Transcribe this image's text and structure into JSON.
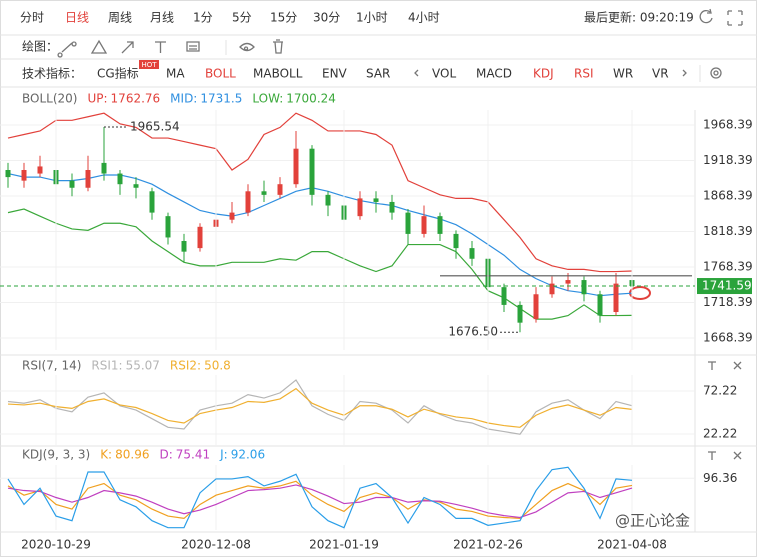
{
  "toolbar": {
    "periods": [
      "分时",
      "日线",
      "周线",
      "月线",
      "1分",
      "5分",
      "15分",
      "30分",
      "1小时",
      "4小时"
    ],
    "active_period": "日线",
    "last_update": "最后更新: 09:20:19",
    "draw_label": "绘图：",
    "indicator_label": "技术指标：",
    "indicators": [
      "CG指标",
      "MA",
      "BOLL",
      "MABOLL",
      "ENV",
      "SAR",
      "VOL",
      "MACD",
      "KDJ",
      "RSI",
      "WR",
      "VR"
    ],
    "active_indicators": [
      "BOLL",
      "KDJ",
      "RSI"
    ],
    "hot_badge": "HOT",
    "active_color": "#e2413b"
  },
  "watermark": "@正心论金",
  "chart_data": [
    {
      "type": "candlestick",
      "title": "BOLL(20)",
      "open": [
        1905,
        1890,
        1900,
        1905,
        1890,
        1880,
        1915,
        1900,
        1885,
        1875,
        1840,
        1805,
        1795,
        1825,
        1835,
        1845,
        1875,
        1870,
        1885,
        1935,
        1870,
        1855,
        1840,
        1865,
        1860,
        1845,
        1815,
        1840,
        1815,
        1795,
        1780,
        1740,
        1715,
        1695,
        1730,
        1745,
        1750,
        1730,
        1705,
        1750
      ],
      "high": [
        1915,
        1915,
        1925,
        1910,
        1900,
        1925,
        1965.54,
        1905,
        1895,
        1880,
        1845,
        1815,
        1830,
        1850,
        1860,
        1885,
        1890,
        1895,
        1960,
        1940,
        1875,
        1860,
        1875,
        1875,
        1870,
        1850,
        1855,
        1845,
        1820,
        1805,
        1785,
        1745,
        1720,
        1740,
        1755,
        1760,
        1755,
        1735,
        1760,
        1765
      ],
      "low": [
        1880,
        1880,
        1895,
        1875,
        1868,
        1875,
        1890,
        1870,
        1865,
        1835,
        1800,
        1775,
        1790,
        1820,
        1830,
        1840,
        1860,
        1865,
        1880,
        1855,
        1840,
        1815,
        1835,
        1845,
        1835,
        1800,
        1810,
        1805,
        1780,
        1770,
        1730,
        1705,
        1676.5,
        1690,
        1725,
        1735,
        1720,
        1690,
        1700,
        1735
      ],
      "close": [
        1895,
        1905,
        1910,
        1885,
        1880,
        1905,
        1900,
        1885,
        1880,
        1845,
        1810,
        1790,
        1825,
        1835,
        1845,
        1875,
        1870,
        1885,
        1935,
        1870,
        1855,
        1835,
        1865,
        1860,
        1845,
        1815,
        1840,
        1815,
        1795,
        1780,
        1740,
        1715,
        1690,
        1730,
        1745,
        1750,
        1730,
        1700,
        1745,
        1741.59
      ],
      "up_color": "#e2413b",
      "down_color": "#2aa33b",
      "series": [
        {
          "name": "UP:",
          "color": "#e2413b",
          "values": [
            1950,
            1955,
            1960,
            1975,
            1975,
            1980,
            1985,
            1970,
            1965,
            1950,
            1950,
            1945,
            1940,
            1935,
            1905,
            1920,
            1955,
            1965,
            1985,
            1975,
            1960,
            1960,
            1960,
            1955,
            1940,
            1890,
            1880,
            1870,
            1865,
            1865,
            1860,
            1835,
            1810,
            1780,
            1770,
            1765,
            1765,
            1762,
            1762,
            1762.76
          ]
        },
        {
          "name": "MID:",
          "color": "#2f8fe0",
          "values": [
            1900,
            1895,
            1895,
            1890,
            1890,
            1893,
            1898,
            1898,
            1893,
            1885,
            1872,
            1860,
            1848,
            1843,
            1840,
            1845,
            1855,
            1865,
            1875,
            1880,
            1875,
            1868,
            1862,
            1858,
            1855,
            1848,
            1842,
            1836,
            1828,
            1815,
            1800,
            1785,
            1765,
            1752,
            1742,
            1735,
            1732,
            1728,
            1730,
            1731.5
          ]
        },
        {
          "name": "LOW:",
          "color": "#3aa83a",
          "values": [
            1845,
            1850,
            1840,
            1830,
            1822,
            1820,
            1830,
            1830,
            1825,
            1805,
            1790,
            1775,
            1770,
            1770,
            1775,
            1775,
            1775,
            1780,
            1778,
            1790,
            1790,
            1780,
            1770,
            1762,
            1770,
            1800,
            1800,
            1800,
            1790,
            1765,
            1735,
            1725,
            1710,
            1695,
            1695,
            1700,
            1715,
            1700,
            1700,
            1700.24
          ]
        }
      ],
      "high_label": "1965.54",
      "low_label": "1676.50",
      "trendline": 1756,
      "ylim": [
        1651.5,
        1989.5
      ],
      "yticks": [
        1968.39,
        1918.39,
        1868.39,
        1818.39,
        1768.39,
        1718.39,
        1668.39
      ],
      "grid": true
    },
    {
      "type": "line",
      "title": "RSI(7, 14)",
      "series": [
        {
          "name": "RSI1:",
          "color": "#b5b5b5",
          "values": [
            60,
            58,
            62,
            52,
            48,
            65,
            70,
            55,
            50,
            40,
            30,
            28,
            50,
            55,
            58,
            68,
            64,
            70,
            85,
            55,
            45,
            38,
            60,
            58,
            50,
            35,
            55,
            45,
            38,
            35,
            28,
            25,
            22,
            48,
            58,
            62,
            50,
            40,
            60,
            55.07
          ]
        },
        {
          "name": "RSI2:",
          "color": "#f0b030",
          "values": [
            57,
            56,
            58,
            54,
            52,
            60,
            63,
            56,
            53,
            46,
            38,
            35,
            46,
            50,
            53,
            60,
            59,
            63,
            75,
            58,
            50,
            44,
            55,
            55,
            51,
            42,
            51,
            46,
            42,
            40,
            35,
            32,
            30,
            44,
            52,
            56,
            50,
            44,
            53,
            50.8
          ]
        }
      ],
      "ylim": [
        9.4,
        90.8
      ],
      "yticks": [
        72.22,
        22.22
      ],
      "grid": true
    },
    {
      "type": "line",
      "title": "KDJ(9, 3, 3)",
      "series": [
        {
          "name": "K:",
          "color": "#f0a020",
          "values": [
            80,
            60,
            70,
            40,
            30,
            75,
            85,
            60,
            50,
            30,
            15,
            10,
            40,
            60,
            70,
            80,
            75,
            80,
            90,
            60,
            40,
            25,
            55,
            65,
            55,
            30,
            50,
            45,
            30,
            25,
            15,
            12,
            10,
            40,
            70,
            85,
            70,
            40,
            75,
            80.96
          ]
        },
        {
          "name": "D:",
          "color": "#c040c0",
          "values": [
            75,
            70,
            68,
            55,
            45,
            55,
            70,
            65,
            58,
            45,
            30,
            20,
            28,
            40,
            55,
            70,
            72,
            75,
            82,
            72,
            58,
            42,
            45,
            55,
            55,
            45,
            48,
            47,
            40,
            32,
            22,
            16,
            12,
            24,
            45,
            65,
            68,
            55,
            65,
            75.41
          ]
        },
        {
          "name": "J:",
          "color": "#2a9ee8",
          "values": [
            95,
            40,
            75,
            15,
            5,
            110,
            110,
            50,
            35,
            5,
            -10,
            -10,
            65,
            95,
            95,
            100,
            80,
            90,
            105,
            35,
            5,
            -10,
            75,
            85,
            55,
            0,
            55,
            40,
            10,
            10,
            -5,
            0,
            5,
            70,
            115,
            120,
            75,
            10,
            95,
            92.06
          ]
        }
      ],
      "categories": [
        null,
        null,
        null,
        "2020-10-29",
        null,
        null,
        null,
        null,
        null,
        null,
        null,
        null,
        null,
        "2020-12-08",
        null,
        null,
        null,
        null,
        null,
        null,
        null,
        "2021-01-19",
        null,
        null,
        null,
        null,
        null,
        null,
        null,
        null,
        "2021-02-26",
        null,
        null,
        null,
        null,
        null,
        null,
        null,
        null,
        "2021-04-08"
      ],
      "ylim": [
        -15,
        125
      ],
      "yticks": [
        96.36
      ],
      "grid": true
    }
  ]
}
